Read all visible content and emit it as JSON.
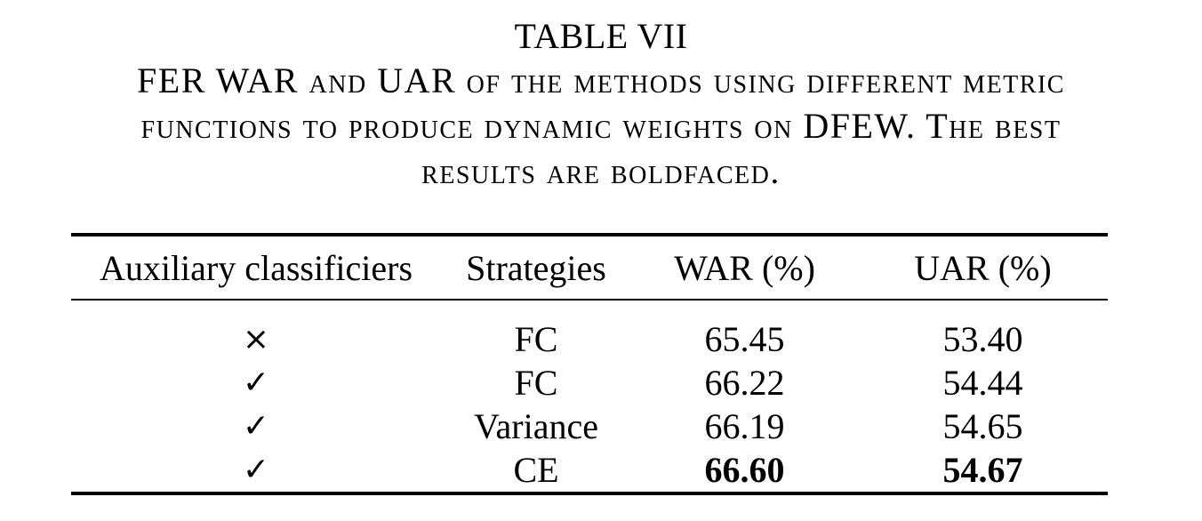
{
  "caption": {
    "label": "TABLE VII",
    "lines": [
      "FER WAR and UAR of the methods using different metric",
      "functions to produce dynamic weights on DFEW. The best",
      "results are boldfaced."
    ]
  },
  "table": {
    "headers": [
      "Auxiliary classificiers",
      "Strategies",
      "WAR (%)",
      "UAR (%)"
    ],
    "rows": [
      {
        "aux": "×",
        "strategy": "FC",
        "war": "65.45",
        "uar": "53.40"
      },
      {
        "aux": "✓",
        "strategy": "FC",
        "war": "66.22",
        "uar": "54.44"
      },
      {
        "aux": "✓",
        "strategy": "Variance",
        "war": "66.19",
        "uar": "54.65"
      },
      {
        "aux": "✓",
        "strategy": "CE",
        "war": "66.60",
        "uar": "54.67"
      }
    ],
    "bold_row_index": 3
  }
}
